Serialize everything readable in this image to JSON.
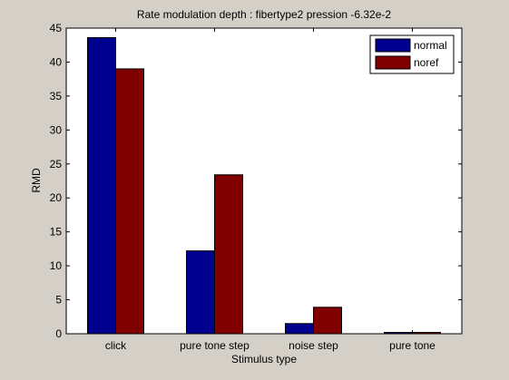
{
  "chart_data": {
    "type": "bar",
    "title": "Rate modulation depth : fibertype2 pression -6.32e-2",
    "xlabel": "Stimulus type",
    "ylabel": "RMD",
    "categories": [
      "click",
      "pure tone step",
      "noise step",
      "pure tone"
    ],
    "series": [
      {
        "name": "normal",
        "color": "#00008f",
        "values": [
          43.6,
          12.2,
          1.5,
          0.2
        ]
      },
      {
        "name": "noref",
        "color": "#800000",
        "values": [
          39.0,
          23.4,
          3.9,
          0.2
        ]
      }
    ],
    "ylim": [
      0,
      45
    ],
    "yticks": [
      0,
      5,
      10,
      15,
      20,
      25,
      30,
      35,
      40,
      45
    ],
    "grid": false,
    "legend_position": "top-right"
  }
}
